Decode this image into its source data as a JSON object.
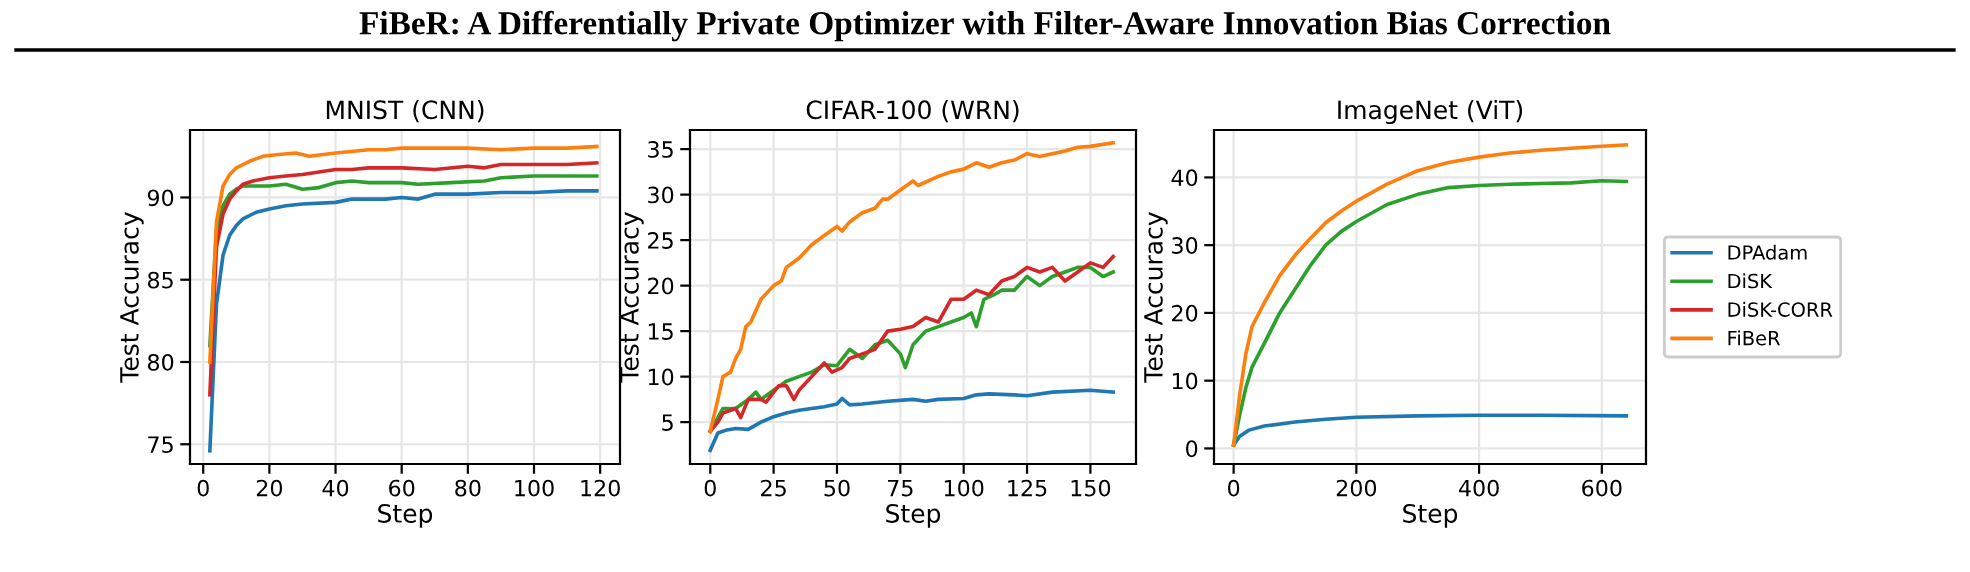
{
  "chart_data": [
    {
      "type": "line",
      "title": "MNIST (CNN)",
      "xlabel": "Step",
      "ylabel": "Test Accuracy",
      "annotations": [
        "FiBeR: A Differentially Private Optimizer with Filter-Aware Innovation Bias Correction"
      ],
      "xlim": [
        -4,
        126
      ],
      "ylim": [
        73.8,
        94.1
      ],
      "xticks": [
        0,
        20,
        40,
        60,
        80,
        100,
        120
      ],
      "yticks": [
        75,
        80,
        85,
        90
      ],
      "grid": true,
      "series": [
        {
          "color": "#1f77b4",
          "x": [
            2,
            4,
            6,
            8,
            10,
            12,
            16,
            20,
            25,
            30,
            40,
            45,
            55,
            60,
            65,
            70,
            80,
            90,
            100,
            110,
            119
          ],
          "values": [
            74.6,
            83.5,
            86.5,
            87.7,
            88.3,
            88.7,
            89.1,
            89.3,
            89.5,
            89.6,
            89.7,
            89.9,
            89.9,
            90.0,
            89.9,
            90.2,
            90.2,
            90.3,
            90.3,
            90.4,
            90.4
          ]
        },
        {
          "color": "#2ca02c",
          "x": [
            2,
            4,
            6,
            8,
            10,
            12,
            20,
            25,
            30,
            35,
            40,
            45,
            50,
            60,
            65,
            75,
            85,
            90,
            100,
            110,
            119
          ],
          "values": [
            81,
            88,
            89.5,
            90.2,
            90.5,
            90.7,
            90.7,
            90.8,
            90.5,
            90.6,
            90.9,
            91.0,
            90.9,
            90.9,
            90.8,
            90.9,
            91.0,
            91.2,
            91.3,
            91.3,
            91.3
          ]
        },
        {
          "color": "#d62728",
          "x": [
            2,
            4,
            6,
            8,
            10,
            12,
            15,
            20,
            25,
            30,
            40,
            45,
            50,
            60,
            70,
            80,
            85,
            90,
            100,
            110,
            119
          ],
          "values": [
            78,
            87,
            89,
            89.9,
            90.4,
            90.8,
            91.0,
            91.2,
            91.3,
            91.4,
            91.7,
            91.7,
            91.8,
            91.8,
            91.7,
            91.9,
            91.8,
            92.0,
            92.0,
            92.0,
            92.1
          ]
        },
        {
          "color": "#ff7f0e",
          "x": [
            2,
            4,
            6,
            8,
            10,
            14,
            18,
            22,
            28,
            32,
            40,
            50,
            55,
            60,
            70,
            80,
            90,
            100,
            110,
            119
          ],
          "values": [
            80,
            88.5,
            90.7,
            91.4,
            91.8,
            92.2,
            92.5,
            92.6,
            92.7,
            92.5,
            92.7,
            92.9,
            92.9,
            93.0,
            93.0,
            93.0,
            92.9,
            93.0,
            93.0,
            93.1
          ]
        }
      ]
    },
    {
      "type": "line",
      "title": "CIFAR-100 (WRN)",
      "xlabel": "Step",
      "ylabel": "Test Accuracy",
      "xlim": [
        -8,
        168
      ],
      "ylim": [
        0.4,
        37.1
      ],
      "xticks": [
        0,
        25,
        50,
        75,
        100,
        125,
        150
      ],
      "yticks": [
        5,
        10,
        15,
        20,
        25,
        30,
        35
      ],
      "grid": true,
      "series": [
        {
          "color": "#1f77b4",
          "x": [
            0,
            3,
            6,
            10,
            15,
            20,
            25,
            30,
            35,
            40,
            45,
            50,
            52,
            55,
            60,
            70,
            80,
            85,
            90,
            100,
            105,
            110,
            120,
            125,
            135,
            150,
            159
          ],
          "values": [
            1.9,
            3.8,
            4.1,
            4.3,
            4.2,
            5.0,
            5.6,
            6.0,
            6.3,
            6.5,
            6.7,
            7.0,
            7.6,
            6.9,
            7.0,
            7.3,
            7.5,
            7.3,
            7.5,
            7.6,
            8.0,
            8.1,
            8.0,
            7.9,
            8.3,
            8.5,
            8.3
          ]
        },
        {
          "color": "#2ca02c",
          "x": [
            0,
            3,
            5,
            10,
            15,
            18,
            20,
            25,
            30,
            35,
            40,
            45,
            50,
            55,
            60,
            65,
            70,
            75,
            77,
            80,
            85,
            90,
            95,
            100,
            103,
            105,
            108,
            112,
            115,
            120,
            125,
            130,
            135,
            140,
            145,
            150,
            155,
            159
          ],
          "values": [
            4,
            5.5,
            6.5,
            6.5,
            7.5,
            8.3,
            7.5,
            8.5,
            9.5,
            10,
            10.5,
            11.3,
            11.2,
            13,
            12,
            13.5,
            14,
            12.5,
            11,
            13.5,
            15,
            15.5,
            16,
            16.5,
            17,
            15.5,
            18.5,
            19,
            19.5,
            19.5,
            21,
            20,
            21,
            21.5,
            22,
            22,
            21,
            21.5
          ]
        },
        {
          "color": "#d62728",
          "x": [
            0,
            3,
            5,
            10,
            12,
            15,
            20,
            22,
            27,
            30,
            33,
            35,
            40,
            45,
            48,
            52,
            55,
            60,
            65,
            70,
            75,
            80,
            85,
            90,
            95,
            100,
            105,
            110,
            115,
            120,
            125,
            130,
            135,
            140,
            145,
            150,
            155,
            159
          ],
          "values": [
            4,
            5,
            6,
            6.5,
            5.5,
            7.5,
            7.5,
            7.2,
            9,
            9,
            7.5,
            8.5,
            10,
            11.5,
            10.5,
            11,
            12,
            12.5,
            13,
            15,
            15.2,
            15.5,
            16.5,
            16,
            18.5,
            18.5,
            19.5,
            19,
            20.5,
            21,
            22,
            21.5,
            22,
            20.5,
            21.5,
            22.5,
            22,
            23.2
          ]
        },
        {
          "color": "#ff7f0e",
          "x": [
            0,
            3,
            5,
            8,
            10,
            12,
            14,
            16,
            20,
            25,
            28,
            30,
            35,
            40,
            45,
            50,
            52,
            55,
            60,
            65,
            68,
            70,
            75,
            80,
            82,
            90,
            95,
            100,
            105,
            110,
            115,
            120,
            125,
            130,
            135,
            140,
            145,
            150,
            159
          ],
          "values": [
            4,
            7.5,
            10,
            10.5,
            12,
            13,
            15.5,
            16,
            18.5,
            20,
            20.5,
            22,
            23,
            24.5,
            25.5,
            26.5,
            26,
            27,
            28,
            28.5,
            29.5,
            29.5,
            30.5,
            31.5,
            31,
            32,
            32.5,
            32.8,
            33.5,
            33.0,
            33.5,
            33.8,
            34.5,
            34.2,
            34.5,
            34.8,
            35.2,
            35.3,
            35.7
          ]
        }
      ]
    },
    {
      "type": "line",
      "title": "ImageNet (ViT)",
      "xlabel": "Step",
      "ylabel": "Test Accuracy",
      "xlim": [
        -32,
        672
      ],
      "ylim": [
        -2.3,
        47
      ],
      "xticks": [
        0,
        200,
        400,
        600
      ],
      "yticks": [
        0,
        10,
        20,
        30,
        40
      ],
      "grid": true,
      "legend": "right",
      "series": [
        {
          "name": "DPAdam",
          "color": "#1f77b4",
          "x": [
            0,
            10,
            25,
            50,
            100,
            150,
            200,
            300,
            400,
            500,
            640
          ],
          "values": [
            0.5,
            1.8,
            2.7,
            3.3,
            3.9,
            4.3,
            4.6,
            4.8,
            4.9,
            4.9,
            4.8
          ]
        },
        {
          "name": "DiSK",
          "color": "#2ca02c",
          "x": [
            0,
            10,
            20,
            30,
            50,
            75,
            100,
            125,
            150,
            175,
            200,
            250,
            300,
            350,
            400,
            450,
            500,
            550,
            600,
            640
          ],
          "values": [
            0.5,
            5,
            9,
            12,
            15.5,
            20,
            23.5,
            27,
            30,
            32,
            33.5,
            36,
            37.5,
            38.5,
            38.8,
            39,
            39.1,
            39.2,
            39.5,
            39.4
          ]
        },
        {
          "name": "DiSK-CORR",
          "color": "#d62728"
        },
        {
          "name": "FiBeR",
          "color": "#ff7f0e",
          "x": [
            0,
            10,
            20,
            30,
            50,
            75,
            100,
            125,
            150,
            175,
            200,
            250,
            300,
            350,
            400,
            450,
            500,
            550,
            600,
            640
          ],
          "values": [
            0.5,
            8,
            14,
            18,
            21.5,
            25.5,
            28.5,
            31,
            33.3,
            35,
            36.5,
            39,
            41,
            42.2,
            43,
            43.6,
            44,
            44.3,
            44.6,
            44.8
          ]
        }
      ]
    }
  ]
}
